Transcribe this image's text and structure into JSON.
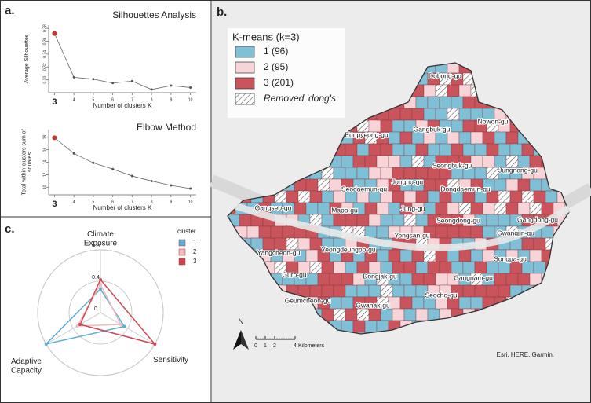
{
  "panels": [
    "a.",
    "b.",
    "c."
  ],
  "chart_data": [
    {
      "type": "line",
      "title": "Silhouettes Analysis",
      "xlabel": "Number of clusters K",
      "ylabel": "Average Silhouettes",
      "x": [
        3,
        4,
        5,
        6,
        7,
        8,
        9,
        10
      ],
      "values": [
        0.372,
        0.304,
        0.301,
        0.295,
        0.298,
        0.285,
        0.291,
        0.288
      ],
      "color": "#666",
      "point_colors": [
        "#c0392b",
        "#555",
        "#555",
        "#555",
        "#555",
        "#555",
        "#555",
        "#555"
      ],
      "xlim": [
        2.7,
        10.3
      ],
      "xticks": [
        3,
        4,
        5,
        6,
        7,
        8,
        9,
        10
      ],
      "ylim": [
        0.28,
        0.385
      ],
      "yticks": [
        {
          "value": 0.3,
          "label": "0.30"
        },
        0.32,
        0.34,
        0.36,
        0.38
      ]
    },
    {
      "type": "line",
      "title": "Elbow Method",
      "xlabel": "Number of clusters K",
      "ylabel": "Total within-clusters sum of squares",
      "x": [
        3,
        4,
        5,
        6,
        7,
        8,
        9,
        10
      ],
      "values": [
        17.9,
        15.4,
        13.9,
        12.9,
        11.8,
        11.0,
        10.3,
        9.8
      ],
      "color": "#666",
      "point_colors": [
        "#c0392b",
        "#555",
        "#555",
        "#555",
        "#555",
        "#555",
        "#555",
        "#555"
      ],
      "xlim": [
        2.7,
        10.3
      ],
      "xticks": [
        3,
        4,
        5,
        6,
        7,
        8,
        9,
        10
      ],
      "ylim": [
        8.8,
        19.2
      ],
      "yticks": [
        10,
        12,
        14,
        16,
        18
      ]
    },
    {
      "type": "radar",
      "categories": [
        "Climate\nExposure",
        "Sensitivity",
        "Adaptive\nCapacity"
      ],
      "legend_title": "cluster",
      "rlim": [
        0,
        0.8
      ],
      "rticks": [
        0,
        0.4,
        0.8
      ],
      "series": [
        {
          "name": "1",
          "color": "#5aaed3",
          "values": [
            0.3,
            0.35,
            0.8
          ]
        },
        {
          "name": "2",
          "color": "#f2b9bf",
          "values": [
            0.36,
            0.3,
            0.34
          ]
        },
        {
          "name": "3",
          "color": "#d2454f",
          "values": [
            0.42,
            0.8,
            0.3
          ]
        }
      ]
    }
  ],
  "map": {
    "title": "K-means (k=3)",
    "legend": [
      {
        "label": "1 (96)",
        "color": "#7fc0d6"
      },
      {
        "label": "2 (95)",
        "color": "#f7d4d8"
      },
      {
        "label": "3 (201)",
        "color": "#c9545c"
      },
      {
        "label": "Removed 'dong's"
      }
    ],
    "districts": [
      "Dobong-gu",
      "Nowon-gu",
      "Gangbuk-gu",
      "Eunpyeong-gu",
      "Seongbuk-gu",
      "Jungnang-gu",
      "Jongno-gu",
      "Seodaemun-gu",
      "Dongdaemun-gu",
      "Mapo-gu",
      "Jung-gu",
      "Seongdong-gu",
      "Gangseo-gu",
      "Gangdong-gu",
      "Gwangjin-gu",
      "Yongsan-gu",
      "Yangcheon-gu",
      "Yeongdeungpo-gu",
      "Songpa-gu",
      "Guro-gu",
      "Dongjak-gu",
      "Gangnam-gu",
      "Geumcheon-gu",
      "Gwanak-gu",
      "Seocho-gu"
    ],
    "north": "N",
    "scale": [
      "0",
      "1",
      "2",
      "4"
    ],
    "scale_unit": "Kilometers",
    "attribution": "Esri, HERE, Garmin,"
  }
}
